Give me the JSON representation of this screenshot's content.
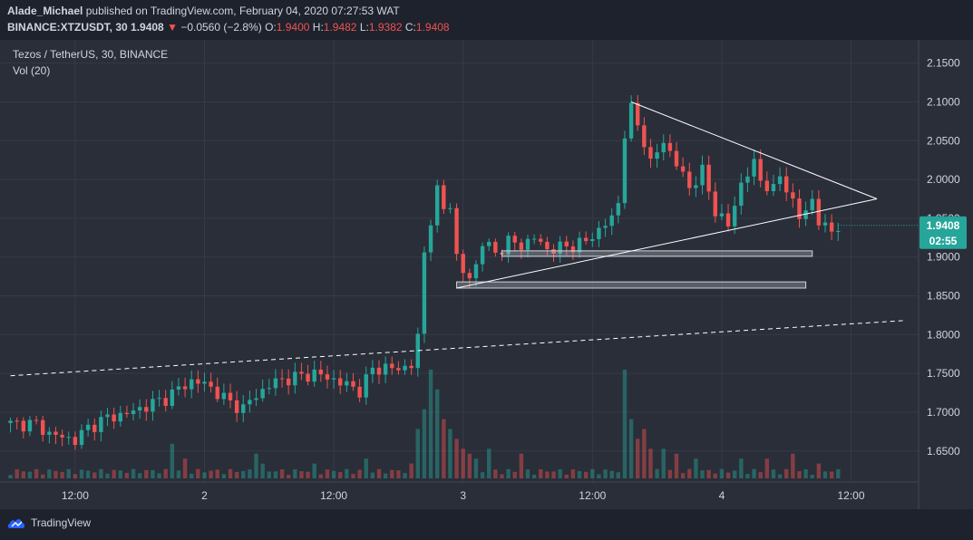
{
  "header": {
    "author": "Alade_Michael",
    "published_text": "published on TradingView.com, February 04, 2020 07:27:53 WAT",
    "symbol": "BINANCE:XTZUSDT, 30",
    "price": "1.9408",
    "change": "−0.0560 (−2.8%)",
    "o_label": "O:",
    "o_value": "1.9400",
    "h_label": "H:",
    "h_value": "1.9482",
    "l_label": "L:",
    "l_value": "1.9382",
    "c_label": "C:",
    "c_value": "1.9408"
  },
  "legend": {
    "series_title": "Tezos / TetherUS, 30, BINANCE",
    "volume_title": "Vol (20)"
  },
  "price_badge": {
    "price": "1.9408",
    "countdown": "02:55"
  },
  "footer": {
    "brand": "TradingView"
  },
  "colors": {
    "up": "#26a69a",
    "down": "#ef5350",
    "bg": "#2a2e39",
    "text": "#d1d4dc",
    "badge": "#26a69a"
  },
  "chart_data": {
    "type": "candlestick",
    "y_ticks": [
      "2.1500",
      "2.1000",
      "2.0500",
      "2.0000",
      "1.9500",
      "1.9000",
      "1.8500",
      "1.8000",
      "1.7500",
      "1.7000",
      "1.6500"
    ],
    "y_tick_values": [
      2.15,
      2.1,
      2.05,
      2.0,
      1.95,
      1.9,
      1.85,
      1.8,
      1.75,
      1.7,
      1.65
    ],
    "ylim": [
      1.61,
      2.18
    ],
    "x_ticks": [
      {
        "label": "12:00",
        "i": 10
      },
      {
        "label": "2",
        "i": 30
      },
      {
        "label": "12:00",
        "i": 50
      },
      {
        "label": "3",
        "i": 70
      },
      {
        "label": "12:00",
        "i": 90
      },
      {
        "label": "4",
        "i": 110
      },
      {
        "label": "12:00",
        "i": 130
      }
    ],
    "n_slots": 138,
    "keyframes": [
      [
        0,
        1.685
      ],
      [
        4,
        1.685
      ],
      [
        6,
        1.672
      ],
      [
        8,
        1.668
      ],
      [
        10,
        1.664
      ],
      [
        12,
        1.68
      ],
      [
        15,
        1.693
      ],
      [
        18,
        1.698
      ],
      [
        21,
        1.708
      ],
      [
        24,
        1.718
      ],
      [
        26,
        1.73
      ],
      [
        28,
        1.74
      ],
      [
        30,
        1.737
      ],
      [
        32,
        1.725
      ],
      [
        34,
        1.712
      ],
      [
        36,
        1.705
      ],
      [
        38,
        1.722
      ],
      [
        41,
        1.74
      ],
      [
        44,
        1.745
      ],
      [
        47,
        1.75
      ],
      [
        50,
        1.742
      ],
      [
        52,
        1.735
      ],
      [
        54,
        1.728
      ],
      [
        56,
        1.755
      ],
      [
        58,
        1.758
      ],
      [
        60,
        1.755
      ],
      [
        62,
        1.762
      ],
      [
        63,
        1.795
      ],
      [
        64,
        1.905
      ],
      [
        65,
        1.95
      ],
      [
        66,
        1.985
      ],
      [
        67,
        1.96
      ],
      [
        68,
        1.97
      ],
      [
        69,
        1.9
      ],
      [
        70,
        1.88
      ],
      [
        71,
        1.872
      ],
      [
        72,
        1.89
      ],
      [
        73,
        1.92
      ],
      [
        75,
        1.905
      ],
      [
        77,
        1.92
      ],
      [
        79,
        1.915
      ],
      [
        81,
        1.925
      ],
      [
        83,
        1.91
      ],
      [
        85,
        1.912
      ],
      [
        87,
        1.915
      ],
      [
        89,
        1.92
      ],
      [
        91,
        1.935
      ],
      [
        93,
        1.95
      ],
      [
        94,
        1.97
      ],
      [
        95,
        2.06
      ],
      [
        96,
        2.09
      ],
      [
        97,
        2.07
      ],
      [
        98,
        2.05
      ],
      [
        99,
        2.02
      ],
      [
        101,
        2.05
      ],
      [
        103,
        2.02
      ],
      [
        105,
        1.99
      ],
      [
        107,
        2.01
      ],
      [
        109,
        1.96
      ],
      [
        111,
        1.94
      ],
      [
        113,
        1.995
      ],
      [
        115,
        2.02
      ],
      [
        116,
        2.0
      ],
      [
        118,
        1.985
      ],
      [
        119,
        2.005
      ],
      [
        120,
        1.99
      ],
      [
        121,
        1.97
      ],
      [
        122,
        1.95
      ],
      [
        123,
        1.96
      ],
      [
        124,
        1.975
      ],
      [
        125,
        1.945
      ],
      [
        126,
        1.937
      ],
      [
        127,
        1.935
      ],
      [
        128,
        1.941
      ]
    ],
    "volume": {
      "spikes": [
        [
          25,
          3.5
        ],
        [
          27,
          2
        ],
        [
          38,
          2.5
        ],
        [
          39,
          1.5
        ],
        [
          47,
          1.5
        ],
        [
          55,
          2
        ],
        [
          62,
          1.5
        ],
        [
          63,
          5
        ],
        [
          64,
          7
        ],
        [
          65,
          11
        ],
        [
          66,
          9
        ],
        [
          67,
          6
        ],
        [
          68,
          5
        ],
        [
          69,
          4
        ],
        [
          70,
          3
        ],
        [
          71,
          2.5
        ],
        [
          72,
          2
        ],
        [
          74,
          3
        ],
        [
          79,
          2.5
        ],
        [
          95,
          11
        ],
        [
          96,
          6
        ],
        [
          97,
          4
        ],
        [
          98,
          5
        ],
        [
          99,
          3
        ],
        [
          101,
          3
        ],
        [
          103,
          2.5
        ],
        [
          106,
          2
        ],
        [
          113,
          2
        ],
        [
          117,
          2
        ],
        [
          121,
          2.5
        ],
        [
          125,
          1.5
        ]
      ],
      "max": 11
    },
    "trendlines": [
      {
        "name": "upper-wedge",
        "from": [
          96,
          2.1
        ],
        "to": [
          134,
          1.975
        ]
      },
      {
        "name": "lower-wedge",
        "from": [
          69,
          1.86
        ],
        "to": [
          134,
          1.975
        ]
      },
      {
        "name": "dashed-support",
        "from": [
          0,
          1.747
        ],
        "to": [
          138,
          1.818
        ]
      }
    ],
    "zones": [
      {
        "name": "zone-upper",
        "from_i": 76,
        "to_i": 124,
        "top": 1.908,
        "bottom": 1.902
      },
      {
        "name": "zone-lower",
        "from_i": 69,
        "to_i": 123,
        "top": 1.868,
        "bottom": 1.86
      }
    ]
  }
}
